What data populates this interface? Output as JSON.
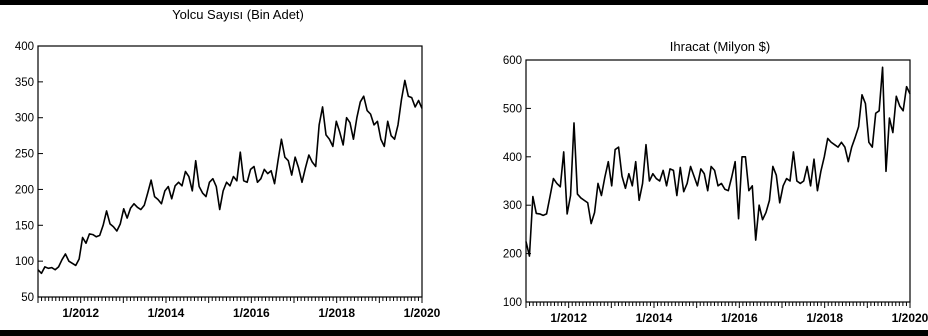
{
  "chart_data": [
    {
      "type": "line",
      "title": "Yolcu Sayısı (Bin Adet)",
      "xlabel": "",
      "ylabel": "",
      "ylim": [
        50,
        400
      ],
      "yticks": [
        50,
        100,
        150,
        200,
        250,
        300,
        350,
        400
      ],
      "xticks": [
        "1/2012",
        "1/2014",
        "1/2016",
        "1/2018",
        "1/2020"
      ],
      "x_start": "2011-01",
      "x_end": "2020-01",
      "grid": false,
      "values": [
        88,
        83,
        92,
        90,
        91,
        88,
        92,
        102,
        110,
        100,
        97,
        94,
        103,
        133,
        125,
        138,
        137,
        134,
        136,
        150,
        170,
        152,
        148,
        142,
        152,
        173,
        160,
        174,
        180,
        175,
        172,
        178,
        195,
        213,
        190,
        186,
        180,
        198,
        204,
        187,
        205,
        210,
        205,
        225,
        218,
        198,
        240,
        204,
        195,
        190,
        210,
        215,
        204,
        172,
        198,
        210,
        205,
        218,
        212,
        252,
        212,
        210,
        228,
        232,
        210,
        215,
        228,
        222,
        226,
        208,
        240,
        270,
        245,
        240,
        220,
        245,
        230,
        210,
        230,
        248,
        238,
        232,
        290,
        315,
        276,
        270,
        260,
        295,
        280,
        262,
        300,
        293,
        270,
        300,
        322,
        330,
        310,
        305,
        290,
        295,
        270,
        260,
        295,
        275,
        270,
        290,
        325,
        352,
        330,
        328,
        315,
        324,
        313
      ]
    },
    {
      "type": "line",
      "title": "İhracat (Milyon $)",
      "xlabel": "",
      "ylabel": "",
      "ylim": [
        100,
        600
      ],
      "yticks": [
        100,
        200,
        300,
        400,
        500,
        600
      ],
      "xticks": [
        "1/2012",
        "1/2014",
        "1/2016",
        "1/2018",
        "1/2020"
      ],
      "x_start": "2011-01",
      "x_end": "2020-01",
      "grid": false,
      "values": [
        225,
        195,
        318,
        283,
        282,
        279,
        282,
        318,
        355,
        345,
        338,
        410,
        282,
        320,
        470,
        323,
        315,
        310,
        305,
        262,
        285,
        345,
        320,
        358,
        390,
        340,
        415,
        420,
        360,
        335,
        365,
        340,
        390,
        310,
        345,
        425,
        350,
        365,
        355,
        350,
        372,
        340,
        375,
        372,
        320,
        378,
        328,
        345,
        380,
        360,
        340,
        375,
        365,
        330,
        380,
        372,
        340,
        345,
        333,
        330,
        358,
        390,
        272,
        400,
        400,
        330,
        340,
        228,
        300,
        270,
        285,
        310,
        380,
        362,
        305,
        340,
        355,
        350,
        410,
        350,
        345,
        350,
        380,
        340,
        395,
        330,
        370,
        400,
        438,
        430,
        425,
        420,
        430,
        420,
        390,
        420,
        440,
        462,
        528,
        510,
        430,
        420,
        490,
        495,
        585,
        370,
        480,
        450,
        525,
        505,
        495,
        545,
        530
      ]
    }
  ],
  "header": {
    "text_right": "Ihracat (Milyon $)"
  }
}
